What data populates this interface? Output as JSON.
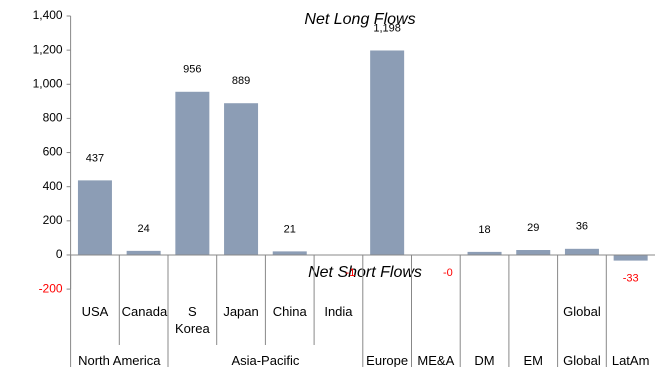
{
  "chart_data": {
    "type": "bar",
    "categories": [
      "USA",
      "Canada",
      "S Korea",
      "Japan",
      "China",
      "India",
      null,
      null,
      null,
      null,
      "Global",
      null
    ],
    "groups": [
      "North America",
      "North America",
      "Asia-Pacific",
      "Asia-Pacific",
      "Asia-Pacific",
      "Asia-Pacific",
      "Europe",
      "ME&A",
      "DM",
      "EM",
      "Global",
      "LatAm"
    ],
    "values": [
      437,
      24,
      956,
      889,
      21,
      -1,
      1198,
      0,
      18,
      29,
      36,
      -33
    ],
    "value_labels": [
      "437",
      "24",
      "956",
      "889",
      "21",
      "-1",
      "1,198",
      "-0",
      "18",
      "29",
      "36",
      "-33"
    ],
    "color": "#8c9db5",
    "negative_label_color": "#ff0000",
    "annotations": [
      "Net Long Flows",
      "Net Short Flows"
    ],
    "ylim": [
      -200,
      1400
    ],
    "yticks": [
      -200,
      0,
      200,
      400,
      600,
      800,
      {
        "value": 1000,
        "label": "1,000"
      },
      {
        "value": 1200,
        "label": "1,200"
      },
      {
        "value": 1400,
        "label": "1,400"
      }
    ]
  }
}
